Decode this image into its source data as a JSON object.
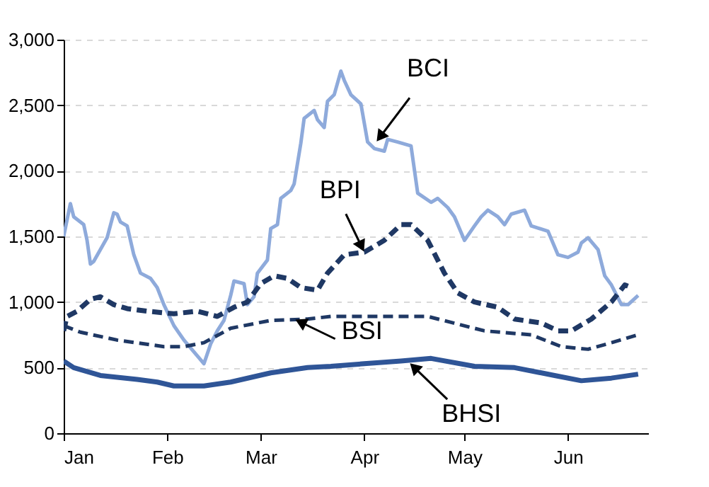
{
  "chart_data": {
    "type": "line",
    "xlim": [
      "--01-01",
      "--06-25"
    ],
    "xticks": [
      {
        "value": "--01-01",
        "label": "Jan"
      },
      {
        "value": "--02-01",
        "label": "Feb"
      },
      {
        "value": "--03-01",
        "label": "Mar"
      },
      {
        "value": "--04-01",
        "label": "Apr"
      },
      {
        "value": "--05-01",
        "label": "May"
      },
      {
        "value": "--06-01",
        "label": "Jun"
      }
    ],
    "ylim": [
      0,
      3000
    ],
    "yticks": [
      0,
      500,
      {
        "value": 1000,
        "label": "1,000"
      },
      {
        "value": 1500,
        "label": "1,500"
      },
      {
        "value": 2000,
        "label": "2,000"
      },
      {
        "value": 2500,
        "label": "2,500"
      },
      {
        "value": 3000,
        "label": "3,000"
      }
    ],
    "grid": "y",
    "series": [
      {
        "color": "#8eaadb",
        "line_style": "solid",
        "x": [
          "--01-01",
          "--01-03",
          "--01-04",
          "--01-07",
          "--01-08",
          "--01-09",
          "--01-10",
          "--01-12",
          "--01-14",
          "--01-16",
          "--01-17",
          "--01-18",
          "--01-20",
          "--01-22",
          "--01-24",
          "--01-27",
          "--01-29",
          "--01-31",
          "--02-03",
          "--02-06",
          "--02-09",
          "--02-12",
          "--02-14",
          "--02-16",
          "--02-18",
          "--02-20",
          "--02-21",
          "--02-24",
          "--02-25",
          "--02-27",
          "--02-28",
          "--03-03",
          "--03-04",
          "--03-06",
          "--03-07",
          "--03-10",
          "--03-11",
          "--03-13",
          "--03-14",
          "--03-17",
          "--03-18",
          "--03-20",
          "--03-21",
          "--03-23",
          "--03-25",
          "--03-26",
          "--03-28",
          "--03-31",
          "--04-02",
          "--04-04",
          "--04-07",
          "--04-08",
          "--04-11",
          "--04-15",
          "--04-17",
          "--04-21",
          "--04-23",
          "--04-26",
          "--04-28",
          "--05-01",
          "--05-04",
          "--05-06",
          "--05-08",
          "--05-11",
          "--05-13",
          "--05-15",
          "--05-19",
          "--05-21",
          "--05-26",
          "--05-29",
          "--06-01",
          "--06-04",
          "--06-05",
          "--06-07",
          "--06-10",
          "--06-12",
          "--06-14",
          "--06-17",
          "--06-19",
          "--06-22"
        ],
        "values": [
          1500,
          1750,
          1650,
          1590,
          1470,
          1290,
          1310,
          1400,
          1490,
          1680,
          1670,
          1610,
          1580,
          1360,
          1220,
          1180,
          1110,
          980,
          820,
          710,
          620,
          530,
          680,
          780,
          860,
          1050,
          1160,
          1140,
          980,
          1040,
          1220,
          1320,
          1560,
          1590,
          1790,
          1850,
          1900,
          2210,
          2400,
          2460,
          2390,
          2330,
          2530,
          2580,
          2760,
          2690,
          2580,
          2510,
          2220,
          2170,
          2150,
          2240,
          2220,
          2190,
          1830,
          1760,
          1790,
          1720,
          1650,
          1470,
          1580,
          1650,
          1700,
          1650,
          1590,
          1670,
          1700,
          1580,
          1540,
          1360,
          1340,
          1380,
          1450,
          1490,
          1400,
          1200,
          1130,
          980,
          980,
          1050
        ]
      },
      {
        "color": "#1f3864",
        "line_style": "dashed",
        "x": [
          "--01-01",
          "--01-02",
          "--01-05",
          "--01-09",
          "--01-12",
          "--01-16",
          "--01-20",
          "--01-26",
          "--02-03",
          "--02-10",
          "--02-16",
          "--02-21",
          "--02-25",
          "--03-01",
          "--03-05",
          "--03-09",
          "--03-13",
          "--03-18",
          "--03-21",
          "--03-26",
          "--04-01",
          "--04-07",
          "--04-12",
          "--04-15",
          "--04-20",
          "--04-25",
          "--04-29",
          "--05-04",
          "--05-11",
          "--05-16",
          "--05-24",
          "--05-29",
          "--06-02",
          "--06-08",
          "--06-14",
          "--06-18",
          "--06-20"
        ],
        "values": [
          780,
          890,
          930,
          1020,
          1040,
          980,
          950,
          930,
          910,
          930,
          890,
          960,
          1000,
          1140,
          1200,
          1180,
          1110,
          1090,
          1220,
          1360,
          1380,
          1470,
          1590,
          1590,
          1470,
          1220,
          1070,
          1000,
          960,
          870,
          840,
          780,
          780,
          870,
          1000,
          1130,
          1110
        ]
      },
      {
        "color": "#1f3864",
        "line_style": "dashed",
        "x": [
          "--01-01",
          "--01-06",
          "--01-17",
          "--01-31",
          "--02-06",
          "--02-12",
          "--02-20",
          "--03-04",
          "--03-15",
          "--03-22",
          "--04-01",
          "--04-20",
          "--05-07",
          "--05-21",
          "--05-30",
          "--06-07",
          "--06-14",
          "--06-22"
        ],
        "values": [
          820,
          770,
          710,
          660,
          660,
          690,
          800,
          860,
          870,
          890,
          890,
          890,
          780,
          750,
          660,
          640,
          690,
          750
        ]
      },
      {
        "color": "#2f5597",
        "line_style": "solid",
        "x": [
          "--01-01",
          "--01-04",
          "--01-12",
          "--01-23",
          "--01-29",
          "--02-03",
          "--02-12",
          "--02-20",
          "--03-04",
          "--03-15",
          "--03-22",
          "--04-01",
          "--04-12",
          "--04-21",
          "--05-04",
          "--05-16",
          "--05-28",
          "--06-05",
          "--06-14",
          "--06-22"
        ],
        "values": [
          550,
          500,
          440,
          410,
          390,
          360,
          360,
          390,
          460,
          500,
          510,
          530,
          550,
          570,
          510,
          500,
          440,
          400,
          420,
          450
        ]
      }
    ],
    "annotations": [
      {
        "text": "BCI",
        "x": "--04-04",
        "y": 2200
      },
      {
        "text": "BPI",
        "x": "--04-01",
        "y": 1380
      },
      {
        "text": "BSI",
        "x": "--03-11",
        "y": 870
      },
      {
        "text": "BHSI",
        "x": "--04-14",
        "y": 550
      }
    ]
  }
}
